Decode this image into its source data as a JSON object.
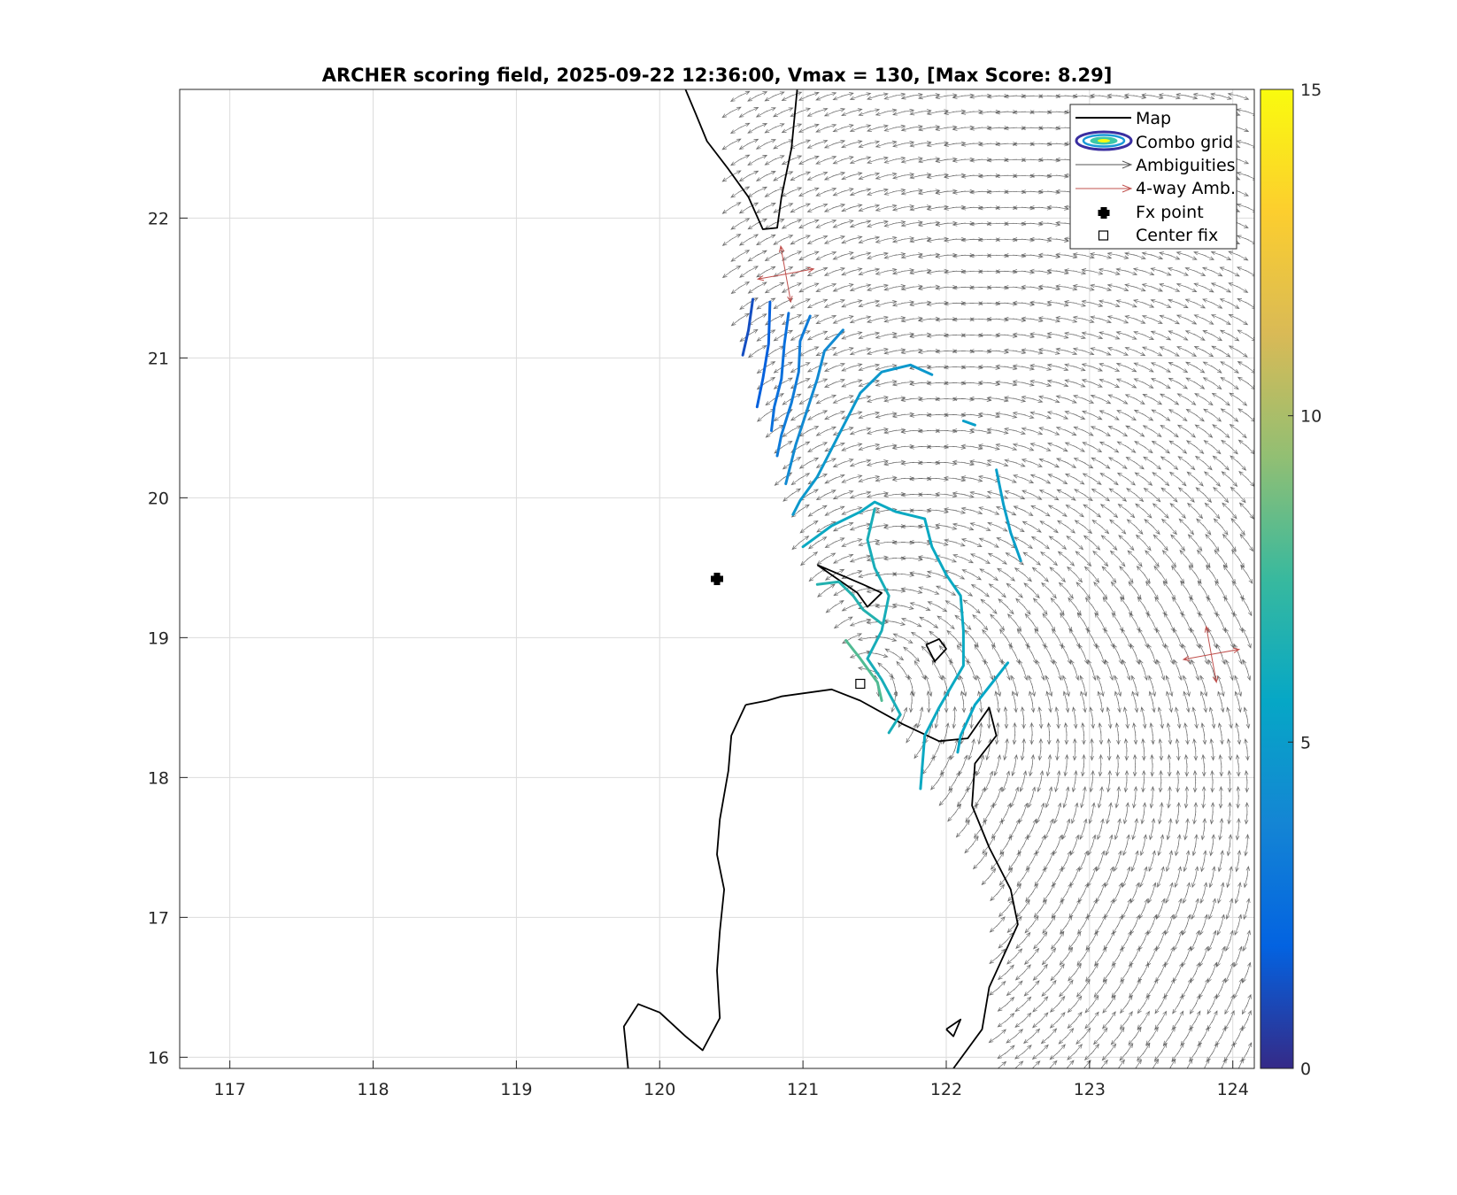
{
  "chart_data": {
    "type": "map",
    "title": "ARCHER scoring field, 2025-09-22 12:36:00, Vmax = 130, [Max Score: 8.29]",
    "xlim": [
      116.65,
      124.15
    ],
    "ylim": [
      15.92,
      22.92
    ],
    "xticks": [
      "117",
      "118",
      "119",
      "120",
      "121",
      "122",
      "123",
      "124"
    ],
    "yticks": [
      "16",
      "17",
      "18",
      "19",
      "20",
      "21",
      "22"
    ],
    "grid": true,
    "legend_position": "top-right",
    "legend": [
      {
        "key": "map",
        "label": "Map"
      },
      {
        "key": "combo",
        "label": "Combo grid"
      },
      {
        "key": "amb",
        "label": "Ambiguities"
      },
      {
        "key": "amb4",
        "label": "4-way Amb."
      },
      {
        "key": "fx",
        "label": "Fx point"
      },
      {
        "key": "center",
        "label": "Center fix"
      }
    ],
    "colorbar": {
      "min": 0,
      "max": 15,
      "ticks": [
        "0",
        "5",
        "10",
        "15"
      ],
      "colormap": "parula"
    },
    "fx_point": [
      120.4,
      19.42
    ],
    "center_fix": [
      121.4,
      18.67
    ],
    "coastlines": [
      [
        [
          120.18,
          22.92
        ],
        [
          120.25,
          22.75
        ],
        [
          120.33,
          22.55
        ],
        [
          120.48,
          22.35
        ],
        [
          120.62,
          22.15
        ],
        [
          120.72,
          21.92
        ],
        [
          120.82,
          21.93
        ],
        [
          120.85,
          22.15
        ],
        [
          120.92,
          22.5
        ],
        [
          120.96,
          22.92
        ]
      ],
      [
        [
          121.1,
          19.52
        ],
        [
          121.42,
          19.38
        ],
        [
          121.55,
          19.32
        ],
        [
          121.45,
          19.22
        ],
        [
          121.38,
          19.32
        ],
        [
          121.1,
          19.52
        ]
      ],
      [
        [
          121.86,
          18.95
        ],
        [
          121.95,
          18.99
        ],
        [
          122.0,
          18.92
        ],
        [
          121.92,
          18.83
        ],
        [
          121.86,
          18.95
        ]
      ],
      [
        [
          120.6,
          18.52
        ],
        [
          120.75,
          18.55
        ],
        [
          120.85,
          18.58
        ],
        [
          121.2,
          18.63
        ],
        [
          121.4,
          18.55
        ],
        [
          121.7,
          18.38
        ],
        [
          121.95,
          18.26
        ],
        [
          122.15,
          18.28
        ],
        [
          122.3,
          18.5
        ],
        [
          122.35,
          18.3
        ],
        [
          122.2,
          18.1
        ],
        [
          122.18,
          17.8
        ],
        [
          122.3,
          17.5
        ],
        [
          122.45,
          17.2
        ],
        [
          122.5,
          16.95
        ],
        [
          122.3,
          16.5
        ],
        [
          122.25,
          16.2
        ],
        [
          122.05,
          15.92
        ]
      ],
      [
        [
          120.6,
          18.52
        ],
        [
          120.5,
          18.3
        ],
        [
          120.48,
          18.05
        ],
        [
          120.42,
          17.7
        ],
        [
          120.4,
          17.45
        ],
        [
          120.45,
          17.2
        ],
        [
          120.42,
          16.9
        ],
        [
          120.4,
          16.62
        ],
        [
          120.42,
          16.28
        ],
        [
          120.3,
          16.05
        ],
        [
          120.18,
          16.15
        ],
        [
          120.0,
          16.32
        ],
        [
          119.85,
          16.38
        ],
        [
          119.75,
          16.22
        ],
        [
          119.78,
          15.92
        ]
      ],
      [
        [
          122.0,
          16.2
        ],
        [
          122.1,
          16.27
        ],
        [
          122.05,
          16.15
        ],
        [
          122.0,
          16.2
        ]
      ]
    ],
    "ambiguity_field": {
      "region": [
        [
          120.5,
          22.9
        ],
        [
          124.15,
          22.9
        ],
        [
          124.15,
          15.92
        ],
        [
          122.35,
          15.92
        ],
        [
          122.35,
          17.0
        ],
        [
          121.0,
          19.6
        ],
        [
          120.5,
          21.4
        ]
      ],
      "center": [
        121.4,
        18.67
      ],
      "grid_step_deg": 0.12
    },
    "four_way_ambiguities": [
      {
        "x": 120.88,
        "y": 21.6
      },
      {
        "x": 123.85,
        "y": 18.88
      }
    ],
    "score_contours": [
      {
        "level": 1.2,
        "points": [
          [
            120.65,
            21.42
          ],
          [
            120.62,
            21.2
          ],
          [
            120.58,
            21.02
          ]
        ]
      },
      {
        "level": 1.8,
        "points": [
          [
            120.77,
            21.4
          ],
          [
            120.76,
            21.1
          ],
          [
            120.72,
            20.85
          ],
          [
            120.68,
            20.65
          ]
        ]
      },
      {
        "level": 2.6,
        "points": [
          [
            120.9,
            21.32
          ],
          [
            120.87,
            21.1
          ],
          [
            120.85,
            20.85
          ],
          [
            120.8,
            20.65
          ],
          [
            120.78,
            20.48
          ]
        ]
      },
      {
        "level": 3.2,
        "points": [
          [
            121.05,
            21.3
          ],
          [
            120.98,
            21.12
          ],
          [
            120.97,
            20.9
          ],
          [
            120.92,
            20.68
          ],
          [
            120.85,
            20.45
          ],
          [
            120.82,
            20.3
          ]
        ]
      },
      {
        "level": 4.0,
        "points": [
          [
            121.28,
            21.2
          ],
          [
            121.15,
            21.05
          ],
          [
            121.1,
            20.85
          ],
          [
            121.02,
            20.6
          ],
          [
            120.95,
            20.38
          ],
          [
            120.88,
            20.1
          ]
        ]
      },
      {
        "level": 4.8,
        "points": [
          [
            121.9,
            20.88
          ],
          [
            121.75,
            20.95
          ],
          [
            121.55,
            20.9
          ],
          [
            121.4,
            20.75
          ],
          [
            121.3,
            20.55
          ],
          [
            121.2,
            20.35
          ],
          [
            121.1,
            20.15
          ],
          [
            120.98,
            19.98
          ],
          [
            120.93,
            19.88
          ]
        ]
      },
      {
        "level": 5.2,
        "points": [
          [
            122.2,
            20.52
          ],
          [
            122.12,
            20.55
          ]
        ]
      },
      {
        "level": 5.2,
        "points": [
          [
            122.35,
            20.2
          ],
          [
            122.4,
            19.95
          ],
          [
            122.45,
            19.75
          ],
          [
            122.52,
            19.55
          ]
        ]
      },
      {
        "level": 5.8,
        "points": [
          [
            121.0,
            19.65
          ],
          [
            121.2,
            19.8
          ],
          [
            121.4,
            19.9
          ],
          [
            121.5,
            19.97
          ],
          [
            121.65,
            19.9
          ],
          [
            121.85,
            19.85
          ],
          [
            121.9,
            19.65
          ],
          [
            121.95,
            19.55
          ],
          [
            122.0,
            19.45
          ],
          [
            122.1,
            19.3
          ],
          [
            122.12,
            19.05
          ],
          [
            122.12,
            18.8
          ],
          [
            121.95,
            18.5
          ],
          [
            121.85,
            18.3
          ],
          [
            121.82,
            17.92
          ]
        ]
      },
      {
        "level": 5.6,
        "points": [
          [
            122.43,
            18.82
          ],
          [
            122.3,
            18.65
          ],
          [
            122.2,
            18.52
          ],
          [
            122.1,
            18.3
          ],
          [
            122.08,
            18.18
          ]
        ]
      },
      {
        "level": 6.3,
        "points": [
          [
            121.5,
            19.92
          ],
          [
            121.45,
            19.7
          ],
          [
            121.5,
            19.5
          ],
          [
            121.6,
            19.3
          ],
          [
            121.55,
            19.05
          ],
          [
            121.45,
            18.85
          ],
          [
            121.55,
            18.7
          ],
          [
            121.68,
            18.45
          ],
          [
            121.6,
            18.32
          ]
        ]
      },
      {
        "level": 6.7,
        "points": [
          [
            121.1,
            19.38
          ],
          [
            121.25,
            19.4
          ],
          [
            121.35,
            19.3
          ],
          [
            121.42,
            19.2
          ],
          [
            121.55,
            19.1
          ]
        ]
      },
      {
        "level": 8.0,
        "points": [
          [
            121.3,
            18.98
          ],
          [
            121.4,
            18.85
          ],
          [
            121.52,
            18.68
          ],
          [
            121.55,
            18.55
          ]
        ]
      }
    ]
  }
}
